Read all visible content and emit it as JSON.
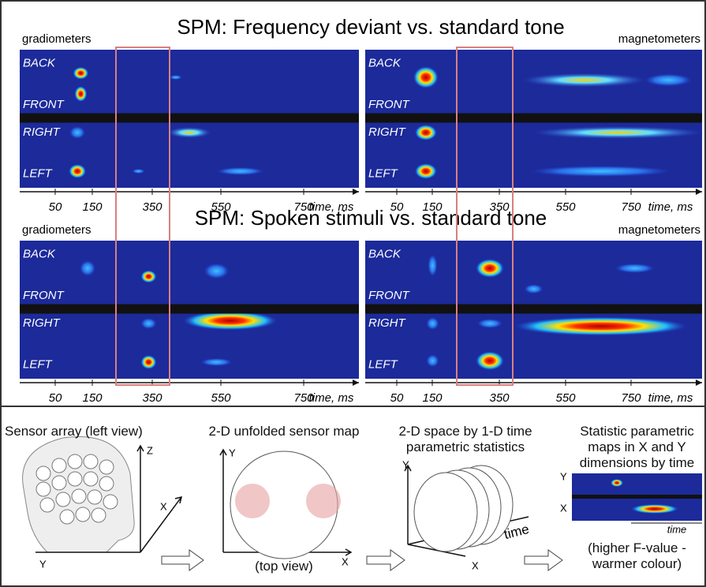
{
  "panels": [
    {
      "title": "SPM: Frequency deviant vs. standard tone",
      "left_label": "gradiometers",
      "right_label": "magnetometers",
      "rows": [
        "BACK",
        "FRONT",
        "RIGHT",
        "LEFT"
      ],
      "ticks": [
        50,
        150,
        350,
        550,
        750
      ],
      "axis_label": "time, ms"
    },
    {
      "title": "SPM: Spoken stimuli vs. standard tone",
      "left_label": "gradiometers",
      "right_label": "magnetometers",
      "rows": [
        "BACK",
        "FRONT",
        "RIGHT",
        "LEFT"
      ],
      "ticks": [
        50,
        150,
        350,
        550,
        750
      ],
      "axis_label": "time, ms"
    }
  ],
  "steps": [
    {
      "title": "Sensor array (left view)",
      "axes": [
        "Z",
        "X",
        "Y"
      ]
    },
    {
      "title": "2-D unfolded sensor map",
      "axes": [
        "Y",
        "X"
      ],
      "note": "(top view)"
    },
    {
      "title": "2-D space by 1-D time parametric statistics",
      "axes": [
        "Y",
        "X"
      ],
      "axis_label": "time"
    },
    {
      "title": "Statistic parametric maps in X and Y dimensions by time",
      "axes": [
        "Y",
        "X"
      ],
      "axis_label": "time",
      "note": "(higher F-value - warmer colour)"
    }
  ]
}
